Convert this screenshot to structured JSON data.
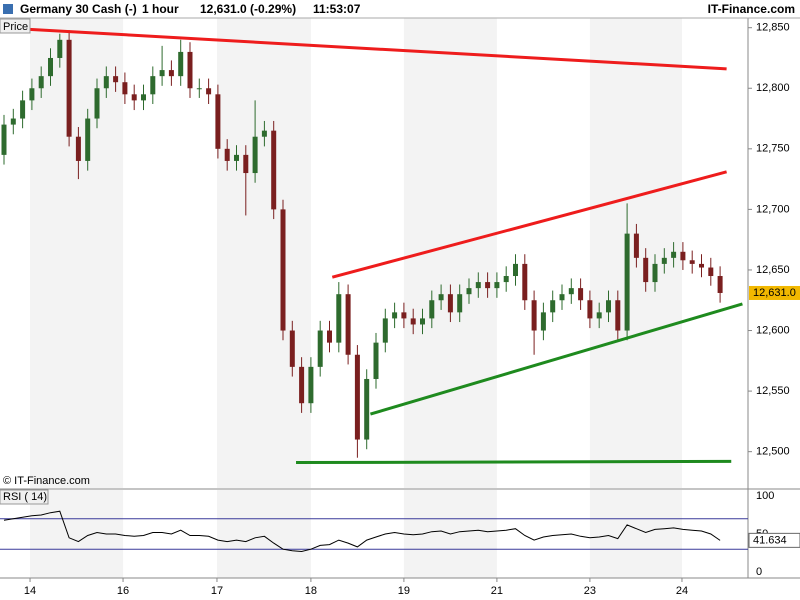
{
  "header": {
    "instrument": "Germany 30 Cash (-)",
    "interval": "1 hour",
    "quote": "12,631.0 (-0.29%)",
    "time": "11:53:07",
    "brand": "IT-Finance.com"
  },
  "chart_data": {
    "type": "candlestick",
    "panel_label": "Price",
    "copyright": "© IT-Finance.com",
    "up_color": "#2e6b2e",
    "down_color": "#7a1f1f",
    "open": [
      12745,
      12770,
      12775,
      12790,
      12800,
      12810,
      12825,
      12840,
      12760,
      12740,
      12775,
      12800,
      12810,
      12805,
      12795,
      12790,
      12795,
      12810,
      12815,
      12810,
      12830,
      12800,
      12800,
      12795,
      12750,
      12740,
      12745,
      12730,
      12760,
      12765,
      12700,
      12600,
      12570,
      12540,
      12570,
      12600,
      12590,
      12630,
      12580,
      12510,
      12560,
      12590,
      12610,
      12615,
      12610,
      12605,
      12610,
      12625,
      12630,
      12615,
      12630,
      12635,
      12640,
      12635,
      12640,
      12645,
      12655,
      12625,
      12600,
      12615,
      12625,
      12630,
      12635,
      12625,
      12610,
      12615,
      12625,
      12600,
      12680,
      12660,
      12640,
      12655,
      12660,
      12665,
      12658,
      12655,
      12652,
      12645
    ],
    "high": [
      12778,
      12783,
      12798,
      12808,
      12818,
      12833,
      12845,
      12848,
      12768,
      12783,
      12808,
      12818,
      12818,
      12813,
      12803,
      12803,
      12818,
      12835,
      12823,
      12840,
      12838,
      12808,
      12808,
      12803,
      12758,
      12753,
      12753,
      12790,
      12773,
      12773,
      12708,
      12608,
      12578,
      12578,
      12608,
      12608,
      12640,
      12638,
      12588,
      12568,
      12598,
      12618,
      12623,
      12623,
      12618,
      12618,
      12633,
      12638,
      12638,
      12638,
      12643,
      12648,
      12648,
      12648,
      12653,
      12663,
      12663,
      12633,
      12623,
      12633,
      12638,
      12643,
      12643,
      12633,
      12623,
      12633,
      12633,
      12705,
      12688,
      12668,
      12663,
      12668,
      12673,
      12673,
      12666,
      12663,
      12660,
      12653
    ],
    "low": [
      12737,
      12762,
      12767,
      12782,
      12792,
      12802,
      12817,
      12752,
      12725,
      12732,
      12767,
      12792,
      12797,
      12787,
      12782,
      12782,
      12787,
      12802,
      12802,
      12802,
      12792,
      12792,
      12787,
      12742,
      12732,
      12732,
      12695,
      12722,
      12752,
      12692,
      12592,
      12562,
      12532,
      12532,
      12562,
      12582,
      12582,
      12572,
      12495,
      12502,
      12552,
      12582,
      12602,
      12602,
      12597,
      12597,
      12602,
      12617,
      12607,
      12607,
      12622,
      12627,
      12627,
      12627,
      12632,
      12637,
      12617,
      12580,
      12592,
      12607,
      12617,
      12622,
      12617,
      12602,
      12602,
      12607,
      12592,
      12592,
      12652,
      12632,
      12632,
      12647,
      12652,
      12650,
      12647,
      12644,
      12637,
      12623
    ],
    "close": [
      12770,
      12775,
      12790,
      12800,
      12810,
      12825,
      12840,
      12760,
      12740,
      12775,
      12800,
      12810,
      12805,
      12795,
      12790,
      12795,
      12810,
      12815,
      12810,
      12830,
      12800,
      12800,
      12795,
      12750,
      12740,
      12745,
      12730,
      12760,
      12765,
      12700,
      12600,
      12570,
      12540,
      12570,
      12600,
      12590,
      12630,
      12580,
      12510,
      12560,
      12590,
      12610,
      12615,
      12610,
      12605,
      12610,
      12625,
      12630,
      12615,
      12630,
      12635,
      12640,
      12635,
      12640,
      12645,
      12655,
      12625,
      12600,
      12615,
      12625,
      12630,
      12635,
      12625,
      12610,
      12615,
      12625,
      12600,
      12680,
      12660,
      12640,
      12655,
      12660,
      12665,
      12658,
      12655,
      12652,
      12645,
      12631
    ],
    "xlim": [
      -0.43,
      80
    ],
    "xticks": [
      {
        "value": 2.8,
        "label": "14"
      },
      {
        "value": 12.8,
        "label": "16"
      },
      {
        "value": 22.9,
        "label": "17"
      },
      {
        "value": 33,
        "label": "18"
      },
      {
        "value": 43,
        "label": "19"
      },
      {
        "value": 53,
        "label": "21"
      },
      {
        "value": 63,
        "label": "23"
      },
      {
        "value": 72.9,
        "label": "24"
      }
    ],
    "ylim": [
      12470,
      12858
    ],
    "yticks": [
      {
        "value": 12500,
        "label": "12,500"
      },
      {
        "value": 12550,
        "label": "12,550"
      },
      {
        "value": 12600,
        "label": "12,600"
      },
      {
        "value": 12650,
        "label": "12,650"
      },
      {
        "value": 12700,
        "label": "12,700"
      },
      {
        "value": 12750,
        "label": "12,750"
      },
      {
        "value": 12800,
        "label": "12,800"
      },
      {
        "value": 12850,
        "label": "12,850"
      }
    ],
    "last_price": {
      "value": 12631.0,
      "label": "12,631.0",
      "color": "#f2b800"
    },
    "trendlines": [
      {
        "color": "#ee1c1c",
        "x": [
          -0.4,
          77.7
        ],
        "y": [
          12850,
          12816
        ]
      },
      {
        "color": "#ee1c1c",
        "x": [
          35.3,
          77.7
        ],
        "y": [
          12644,
          12731
        ]
      },
      {
        "color": "#1e8a1e",
        "x": [
          39.4,
          79.4
        ],
        "y": [
          12531,
          12622
        ]
      },
      {
        "color": "#1e8a1e",
        "x": [
          31.4,
          78.2
        ],
        "y": [
          12491,
          12492
        ]
      }
    ],
    "rsi": {
      "label": "RSI ( 14)",
      "color": "#000000",
      "level_color": "#3a3a9a",
      "values": [
        68,
        70,
        72,
        74,
        75,
        78,
        80,
        45,
        40,
        48,
        52,
        50,
        50,
        48,
        47,
        48,
        52,
        52,
        50,
        55,
        48,
        48,
        47,
        42,
        40,
        42,
        40,
        45,
        47,
        38,
        30,
        28,
        27,
        30,
        35,
        36,
        42,
        38,
        33,
        42,
        46,
        50,
        52,
        50,
        49,
        50,
        53,
        54,
        50,
        53,
        54,
        55,
        53,
        54,
        55,
        57,
        48,
        42,
        46,
        48,
        49,
        50,
        47,
        45,
        46,
        48,
        44,
        62,
        57,
        52,
        56,
        57,
        58,
        56,
        55,
        54,
        50,
        41.634
      ],
      "ylim": [
        0,
        100
      ],
      "yticks": [
        0,
        50,
        100
      ],
      "levels": [
        30,
        70
      ],
      "last": {
        "value": 41.634,
        "label": "41.634"
      }
    }
  }
}
